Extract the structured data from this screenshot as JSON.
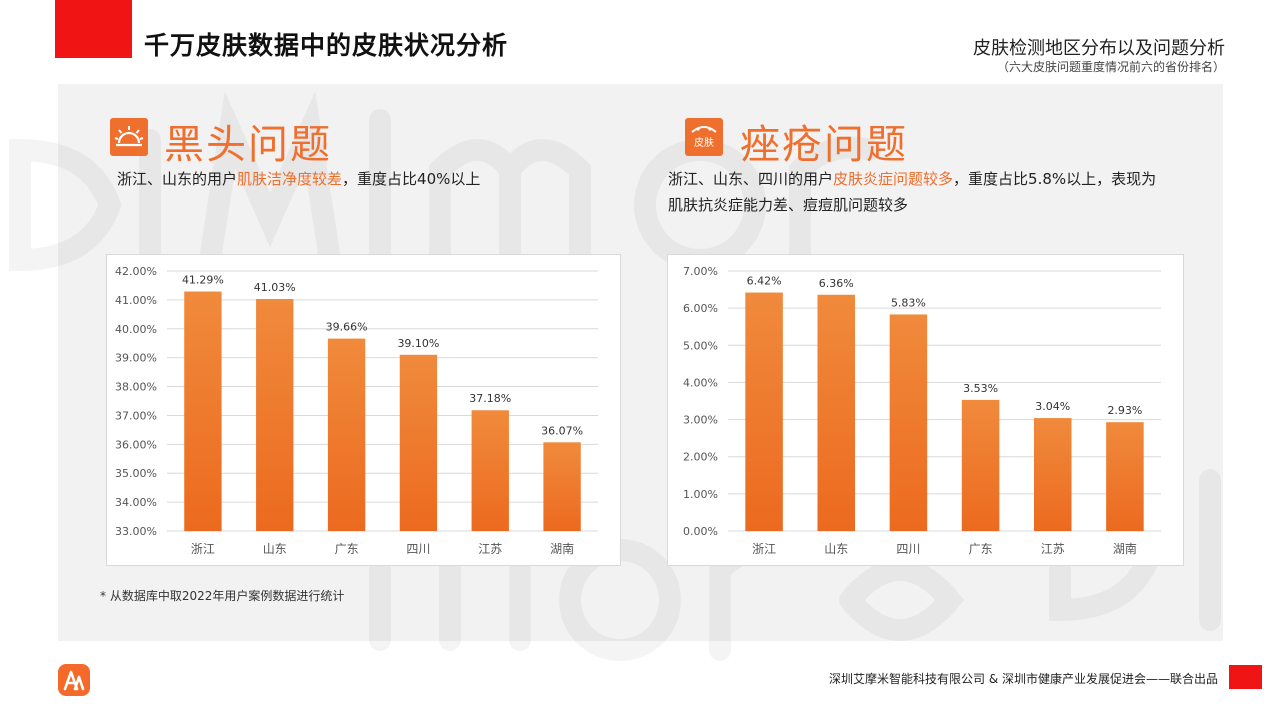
{
  "header": {
    "title": "千万皮肤数据中的皮肤状况分析",
    "section_title": "皮肤检测地区分布以及问题分析",
    "section_subtitle": "（六大皮肤问题重度情况前六的省份排名）"
  },
  "colors": {
    "accent": "#ef6f2e",
    "brand_red": "#f01414",
    "bar_top": "#f08a3c",
    "bar_bottom": "#ec6a1f"
  },
  "left": {
    "icon": "sun-icon",
    "title": "黑头问题",
    "desc_before": "浙江、山东的用户",
    "desc_highlight": "肌肤洁净度较差",
    "desc_after": "，重度占比40%以上"
  },
  "right": {
    "icon": "skin-icon",
    "icon_text": "皮肤",
    "title": "痤疮问题",
    "desc_before": "浙江、山东、四川的用户",
    "desc_highlight": "皮肤炎症问题较多",
    "desc_after": "，重度占比5.8%以上，表现为肌肤抗炎症能力差、痘痘肌问题较多"
  },
  "chart_data": [
    {
      "type": "bar",
      "categories": [
        "浙江",
        "山东",
        "广东",
        "四川",
        "江苏",
        "湖南"
      ],
      "values": [
        41.29,
        41.03,
        39.66,
        39.1,
        37.18,
        36.07
      ],
      "value_labels": [
        "41.29%",
        "41.03%",
        "39.66%",
        "39.10%",
        "37.18%",
        "36.07%"
      ],
      "ylim": [
        33,
        42
      ],
      "yticks": [
        "33.00%",
        "34.00%",
        "35.00%",
        "36.00%",
        "37.00%",
        "38.00%",
        "39.00%",
        "40.00%",
        "41.00%",
        "42.00%"
      ],
      "grid": true
    },
    {
      "type": "bar",
      "categories": [
        "浙江",
        "山东",
        "四川",
        "广东",
        "江苏",
        "湖南"
      ],
      "values": [
        6.42,
        6.36,
        5.83,
        3.53,
        3.04,
        2.93
      ],
      "value_labels": [
        "6.42%",
        "6.36%",
        "5.83%",
        "3.53%",
        "3.04%",
        "2.93%"
      ],
      "ylim": [
        0,
        7
      ],
      "yticks": [
        "0.00%",
        "1.00%",
        "2.00%",
        "3.00%",
        "4.00%",
        "5.00%",
        "6.00%",
        "7.00%"
      ],
      "grid": true
    }
  ],
  "footnote": "* 从数据库中取2022年用户案例数据进行统计",
  "footer": {
    "credit": "深圳艾摩米智能科技有限公司 & 深圳市健康产业发展促进会——联合出品"
  }
}
